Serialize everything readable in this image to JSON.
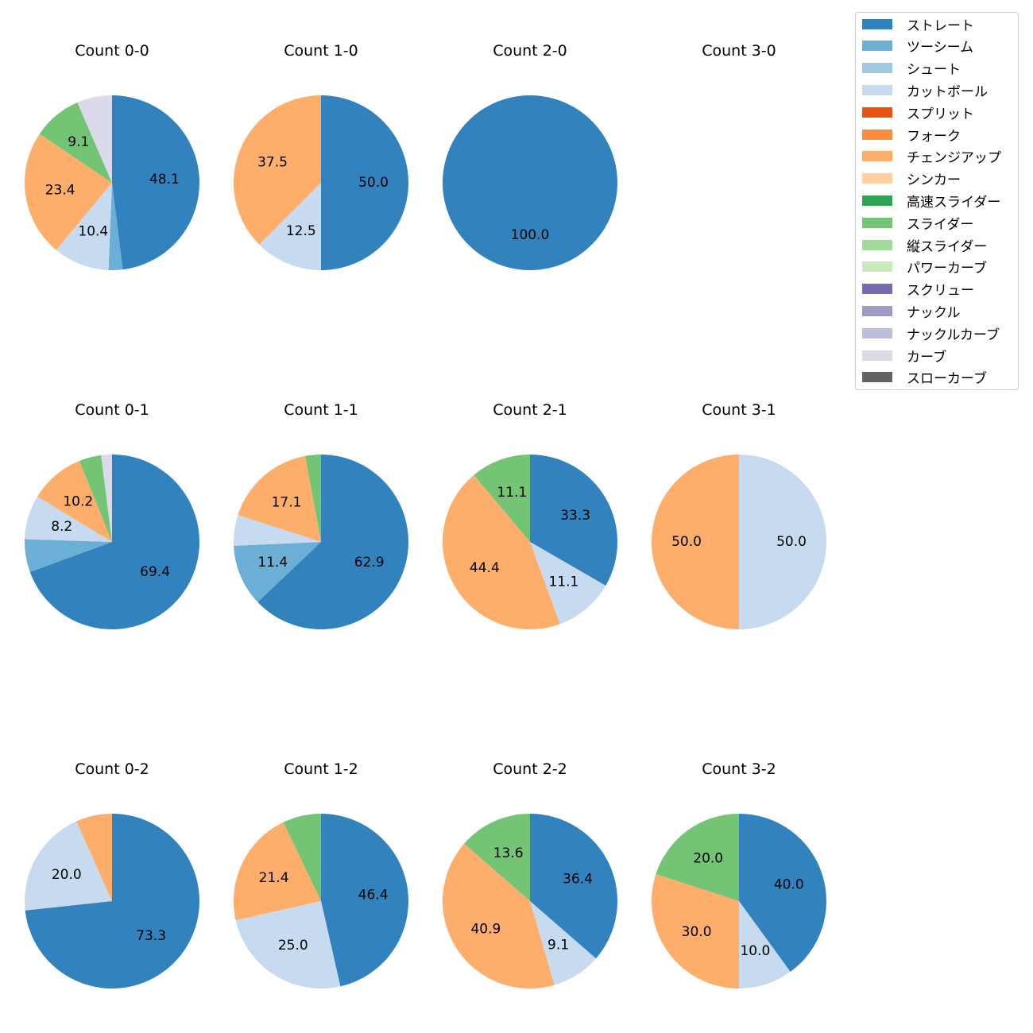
{
  "chart_data": {
    "type": "pie",
    "categories": [
      "ストレート",
      "ツーシーム",
      "シュート",
      "カットボール",
      "スプリット",
      "フォーク",
      "チェンジアップ",
      "シンカー",
      "高速スライダー",
      "スライダー",
      "縦スライダー",
      "パワーカーブ",
      "スクリュー",
      "ナックル",
      "ナックルカーブ",
      "カーブ",
      "スローカーブ"
    ],
    "colors": [
      "#3182bd",
      "#6baed6",
      "#9ecae1",
      "#c6dbef",
      "#e6550d",
      "#fd8d3c",
      "#fdae6b",
      "#fdd0a2",
      "#31a354",
      "#74c476",
      "#a1d99b",
      "#c7e9c0",
      "#756bb1",
      "#9e9ac8",
      "#bcbddc",
      "#dadaeb",
      "#636363"
    ],
    "legend_position": "top-right",
    "start_angle": "top (12 o'clock), clockwise",
    "label_threshold": "slices below 8% are not labeled",
    "panels": [
      {
        "title": "Count 0-0",
        "slices": [
          {
            "category": "ストレート",
            "value": 48.1,
            "label": "48.1"
          },
          {
            "category": "ツーシーム",
            "value": 2.6,
            "label": ""
          },
          {
            "category": "カットボール",
            "value": 10.4,
            "label": "10.4"
          },
          {
            "category": "チェンジアップ",
            "value": 23.4,
            "label": "23.4"
          },
          {
            "category": "スライダー",
            "value": 9.1,
            "label": "9.1"
          },
          {
            "category": "カーブ",
            "value": 6.5,
            "label": ""
          }
        ]
      },
      {
        "title": "Count 1-0",
        "slices": [
          {
            "category": "ストレート",
            "value": 50.0,
            "label": "50.0"
          },
          {
            "category": "カットボール",
            "value": 12.5,
            "label": "12.5"
          },
          {
            "category": "チェンジアップ",
            "value": 37.5,
            "label": "37.5"
          }
        ]
      },
      {
        "title": "Count 2-0",
        "slices": [
          {
            "category": "ストレート",
            "value": 100.0,
            "label": "100.0"
          }
        ]
      },
      {
        "title": "Count 3-0",
        "slices": []
      },
      {
        "title": "Count 0-1",
        "slices": [
          {
            "category": "ストレート",
            "value": 69.4,
            "label": "69.4"
          },
          {
            "category": "ツーシーム",
            "value": 6.1,
            "label": ""
          },
          {
            "category": "カットボール",
            "value": 8.2,
            "label": "8.2"
          },
          {
            "category": "チェンジアップ",
            "value": 10.2,
            "label": "10.2"
          },
          {
            "category": "スライダー",
            "value": 4.1,
            "label": ""
          },
          {
            "category": "カーブ",
            "value": 2.0,
            "label": ""
          }
        ]
      },
      {
        "title": "Count 1-1",
        "slices": [
          {
            "category": "ストレート",
            "value": 62.9,
            "label": "62.9"
          },
          {
            "category": "ツーシーム",
            "value": 11.4,
            "label": "11.4"
          },
          {
            "category": "カットボール",
            "value": 5.7,
            "label": ""
          },
          {
            "category": "チェンジアップ",
            "value": 17.1,
            "label": "17.1"
          },
          {
            "category": "スライダー",
            "value": 2.9,
            "label": ""
          }
        ]
      },
      {
        "title": "Count 2-1",
        "slices": [
          {
            "category": "ストレート",
            "value": 33.3,
            "label": "33.3"
          },
          {
            "category": "カットボール",
            "value": 11.1,
            "label": "11.1"
          },
          {
            "category": "チェンジアップ",
            "value": 44.4,
            "label": "44.4"
          },
          {
            "category": "スライダー",
            "value": 11.1,
            "label": "11.1"
          }
        ]
      },
      {
        "title": "Count 3-1",
        "slices": [
          {
            "category": "カットボール",
            "value": 50.0,
            "label": "50.0"
          },
          {
            "category": "チェンジアップ",
            "value": 50.0,
            "label": "50.0"
          }
        ]
      },
      {
        "title": "Count 0-2",
        "slices": [
          {
            "category": "ストレート",
            "value": 73.3,
            "label": "73.3"
          },
          {
            "category": "カットボール",
            "value": 20.0,
            "label": "20.0"
          },
          {
            "category": "チェンジアップ",
            "value": 6.7,
            "label": ""
          }
        ]
      },
      {
        "title": "Count 1-2",
        "slices": [
          {
            "category": "ストレート",
            "value": 46.4,
            "label": "46.4"
          },
          {
            "category": "カットボール",
            "value": 25.0,
            "label": "25.0"
          },
          {
            "category": "チェンジアップ",
            "value": 21.4,
            "label": "21.4"
          },
          {
            "category": "スライダー",
            "value": 7.1,
            "label": ""
          }
        ]
      },
      {
        "title": "Count 2-2",
        "slices": [
          {
            "category": "ストレート",
            "value": 36.4,
            "label": "36.4"
          },
          {
            "category": "カットボール",
            "value": 9.1,
            "label": "9.1"
          },
          {
            "category": "チェンジアップ",
            "value": 40.9,
            "label": "40.9"
          },
          {
            "category": "スライダー",
            "value": 13.6,
            "label": "13.6"
          }
        ]
      },
      {
        "title": "Count 3-2",
        "slices": [
          {
            "category": "ストレート",
            "value": 40.0,
            "label": "40.0"
          },
          {
            "category": "カットボール",
            "value": 10.0,
            "label": "10.0"
          },
          {
            "category": "チェンジアップ",
            "value": 30.0,
            "label": "30.0"
          },
          {
            "category": "スライダー",
            "value": 20.0,
            "label": "20.0"
          }
        ]
      }
    ]
  }
}
